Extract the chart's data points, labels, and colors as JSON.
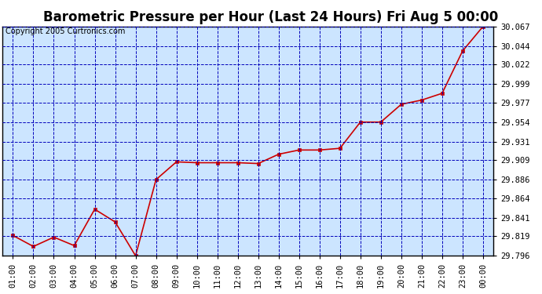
{
  "title": "Barometric Pressure per Hour (Last 24 Hours) Fri Aug 5 00:00",
  "copyright": "Copyright 2005 Curtronics.com",
  "x_labels": [
    "01:00",
    "02:00",
    "03:00",
    "04:00",
    "05:00",
    "06:00",
    "07:00",
    "08:00",
    "09:00",
    "10:00",
    "11:00",
    "12:00",
    "13:00",
    "14:00",
    "15:00",
    "16:00",
    "17:00",
    "18:00",
    "19:00",
    "20:00",
    "21:00",
    "22:00",
    "23:00",
    "00:00"
  ],
  "y_values": [
    29.82,
    29.807,
    29.818,
    29.808,
    29.851,
    29.836,
    29.796,
    29.886,
    29.907,
    29.906,
    29.906,
    29.906,
    29.905,
    29.916,
    29.921,
    29.921,
    29.923,
    29.954,
    29.954,
    29.975,
    29.98,
    29.988,
    30.038,
    30.067
  ],
  "line_color": "#cc0000",
  "marker_color": "#cc0000",
  "bg_color": "#cce5ff",
  "fig_bg_color": "#ffffff",
  "grid_color": "#0000bb",
  "border_color": "#000000",
  "title_color": "#000000",
  "y_min": 29.796,
  "y_max": 30.067,
  "y_ticks": [
    29.796,
    29.819,
    29.841,
    29.864,
    29.886,
    29.909,
    29.931,
    29.954,
    29.977,
    29.999,
    30.022,
    30.044,
    30.067
  ],
  "title_fontsize": 12,
  "copyright_fontsize": 7,
  "tick_fontsize": 7.5
}
